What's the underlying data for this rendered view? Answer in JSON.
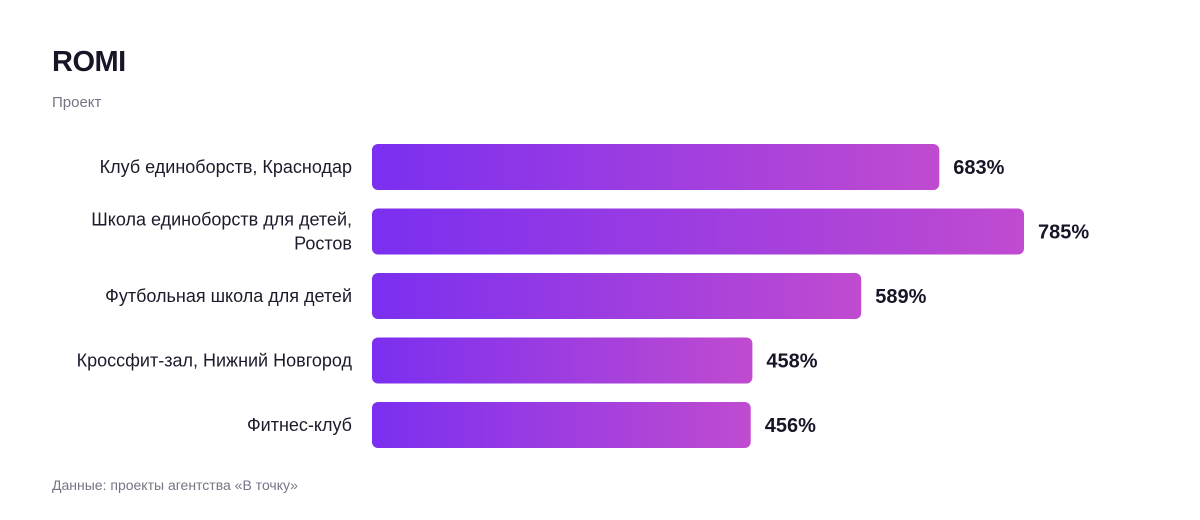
{
  "header": {
    "title": "ROMI",
    "subtitle": "Проект"
  },
  "footer": {
    "source": "Данные: проекты агентства «В точку»"
  },
  "colors": {
    "bar_start": "#7b2ff0",
    "bar_end": "#c04bd0"
  },
  "chart_data": {
    "type": "bar",
    "orientation": "horizontal",
    "title": "ROMI",
    "subtitle": "Проект",
    "categories": [
      [
        "Клуб единоборств, Краснодар"
      ],
      [
        "Школа единоборств для детей,",
        "Ростов"
      ],
      [
        "Футбольная школа для детей"
      ],
      [
        "Кроссфит-зал, Нижний Новгород"
      ],
      [
        "Фитнес-клуб"
      ]
    ],
    "values": [
      683,
      785,
      589,
      458,
      456
    ],
    "value_labels": [
      "683%",
      "785%",
      "589%",
      "458%",
      "456%"
    ],
    "xlim": [
      0,
      785
    ],
    "grid": false,
    "legend": "none"
  }
}
